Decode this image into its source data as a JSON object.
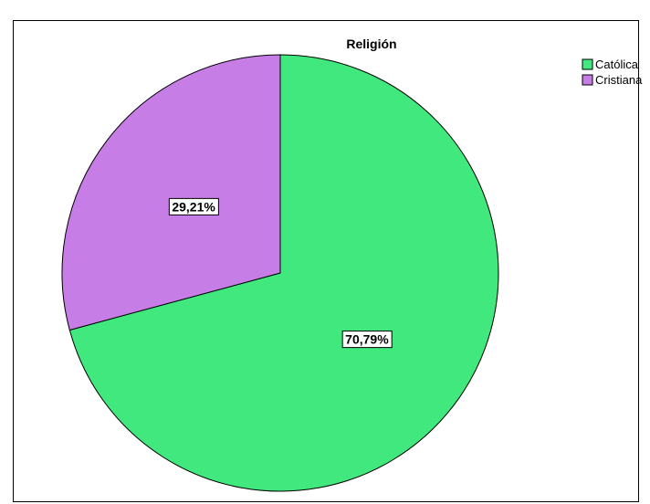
{
  "chart_data": {
    "type": "pie",
    "title": "Religión",
    "categories": [
      "Católica",
      "Cristiana"
    ],
    "values": [
      70.79,
      29.21
    ],
    "labels": [
      "70,79%",
      "29,21%"
    ],
    "colors": [
      "#40e87e",
      "#c77de6"
    ],
    "legend_position": "top-right",
    "start_angle_deg": 0,
    "direction": "clockwise"
  }
}
